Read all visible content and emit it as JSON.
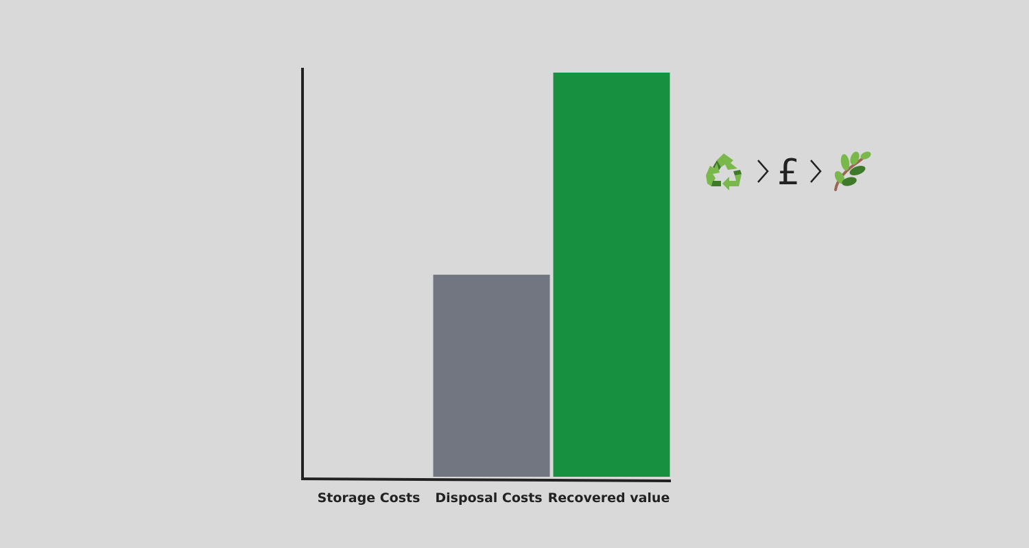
{
  "chart_data": {
    "type": "bar",
    "categories": [
      "Storage Costs",
      "Disposal Costs",
      "Recovered value"
    ],
    "values": [
      0,
      50,
      100
    ],
    "bar_colors": [
      "#6f7480",
      "#727681",
      "#179140"
    ],
    "ylim": [
      0,
      100
    ],
    "grid": false,
    "title": "",
    "xlabel": "",
    "ylabel": ""
  },
  "annotation": {
    "pound_symbol": "£",
    "icons": [
      "recycle-icon",
      "chevron-right-icon",
      "pound-sign",
      "chevron-right-icon",
      "leafy-branch-icon"
    ]
  },
  "colors": {
    "background": "#d9d9d9",
    "axis": "#222222",
    "leaf_dark": "#3f7a2a",
    "leaf_light": "#7ab84c",
    "branch": "#9a6650"
  }
}
